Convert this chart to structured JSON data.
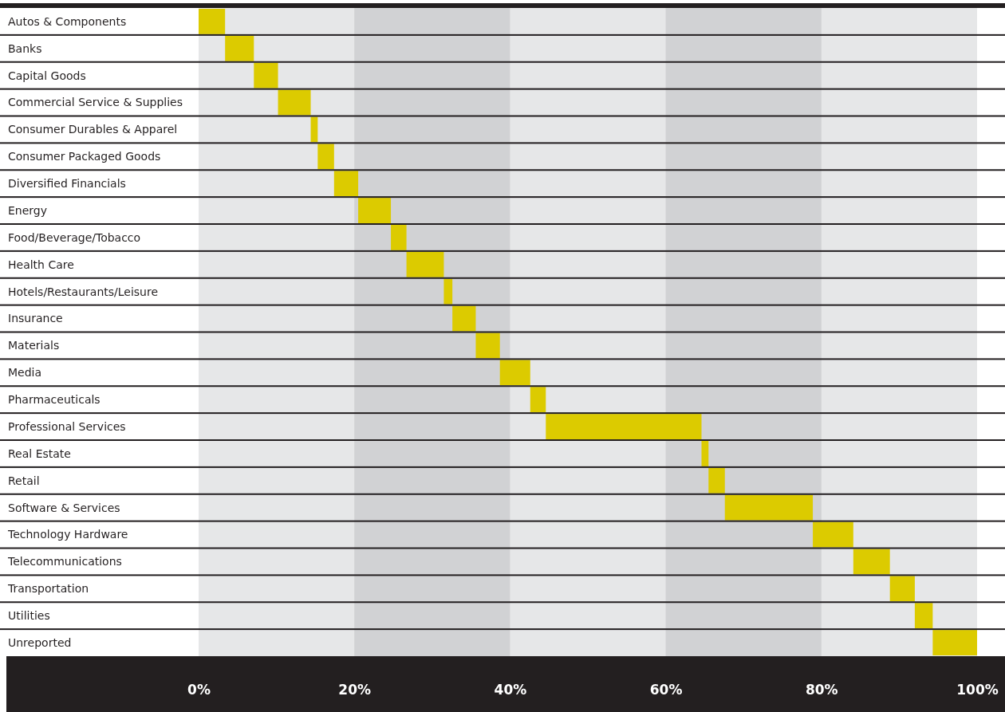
{
  "chart_data": {
    "type": "bar",
    "orientation": "horizontal",
    "categories": [
      "Autos & Components",
      "Banks",
      "Capital Goods",
      "Commercial Service & Supplies",
      "Consumer Durables & Apparel",
      "Consumer Packaged Goods",
      "Diversified Financials",
      "Energy",
      "Food/Beverage/Tobacco",
      "Health Care",
      "Hotels/Restaurants/Leisure",
      "Insurance",
      "Materials",
      "Media",
      "Pharmaceuticals",
      "Professional Services",
      "Real Estate",
      "Retail",
      "Software & Services",
      "Technology Hardware",
      "Telecommunications",
      "Transportation",
      "Utilities",
      "Unreported"
    ],
    "base": [
      0,
      3.4,
      7.1,
      10.2,
      14.4,
      15.3,
      17.4,
      20.5,
      24.7,
      26.7,
      31.5,
      32.6,
      35.6,
      38.7,
      42.6,
      44.6,
      64.6,
      65.5,
      67.6,
      78.9,
      84.1,
      88.8,
      92.0,
      94.3
    ],
    "values": [
      3.4,
      3.7,
      3.1,
      4.2,
      0.9,
      2.1,
      3.1,
      4.2,
      2.0,
      4.8,
      1.1,
      3.0,
      3.1,
      3.9,
      2.0,
      20.0,
      0.9,
      2.1,
      11.3,
      5.2,
      4.7,
      3.2,
      2.3,
      5.7
    ],
    "color": "#dccb00",
    "xlim": [
      0,
      100
    ],
    "xticks": [
      {
        "value": 0,
        "label": "0%"
      },
      {
        "value": 20,
        "label": "20%"
      },
      {
        "value": 40,
        "label": "40%"
      },
      {
        "value": 60,
        "label": "60%"
      },
      {
        "value": 80,
        "label": "80%"
      },
      {
        "value": 100,
        "label": "100%"
      }
    ],
    "bands": [
      {
        "axis": "x",
        "from": 20,
        "to": 40,
        "color": "#d1d2d4"
      },
      {
        "axis": "x",
        "from": 60,
        "to": 80,
        "color": "#d1d2d4"
      }
    ]
  }
}
